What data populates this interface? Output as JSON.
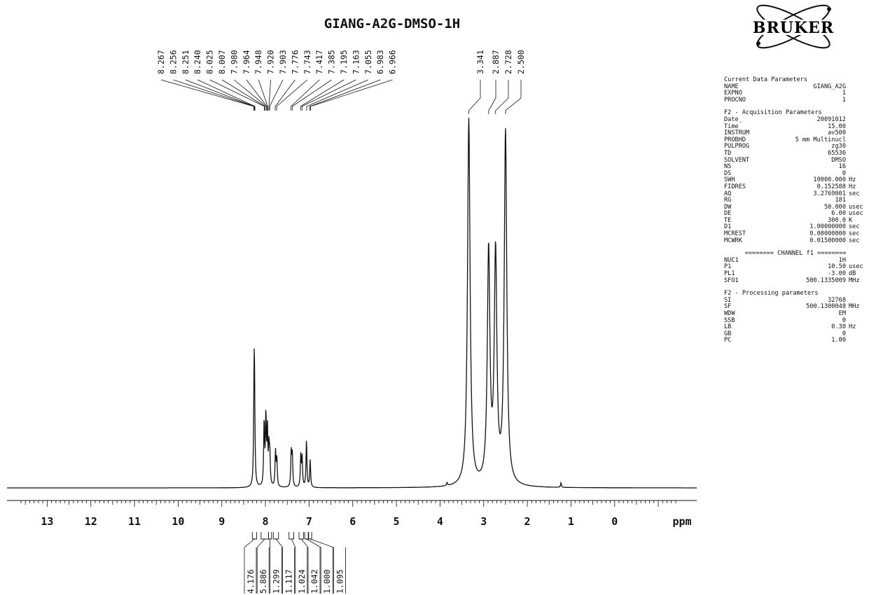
{
  "chart_data": {
    "type": "line",
    "title": "GIANG-A2G-DMSO-1H",
    "xlabel": "ppm",
    "x_axis_reversed": true,
    "xlim": [
      13.6,
      -1.4
    ],
    "x_ticks": [
      13,
      12,
      11,
      10,
      9,
      8,
      7,
      6,
      5,
      4,
      3,
      2,
      1,
      0
    ],
    "ylim": [
      0,
      1.0
    ],
    "series": [
      {
        "peaks": [
          {
            "ppm": 8.26,
            "height": 0.245
          },
          {
            "ppm": 8.25,
            "height": 0.2
          },
          {
            "ppm": 8.03,
            "height": 0.175
          },
          {
            "ppm": 7.99,
            "height": 0.188
          },
          {
            "ppm": 7.955,
            "height": 0.15
          },
          {
            "ppm": 7.92,
            "height": 0.095
          },
          {
            "ppm": 7.9,
            "height": 0.082
          },
          {
            "ppm": 7.77,
            "height": 0.095
          },
          {
            "ppm": 7.74,
            "height": 0.078
          },
          {
            "ppm": 7.41,
            "height": 0.094
          },
          {
            "ppm": 7.385,
            "height": 0.088
          },
          {
            "ppm": 7.19,
            "height": 0.085
          },
          {
            "ppm": 7.16,
            "height": 0.08
          },
          {
            "ppm": 7.06,
            "height": 0.13
          },
          {
            "ppm": 6.975,
            "height": 0.074
          },
          {
            "ppm": 3.341,
            "height": 1.0
          },
          {
            "ppm": 2.887,
            "height": 0.63
          },
          {
            "ppm": 2.728,
            "height": 0.62
          },
          {
            "ppm": 2.5,
            "height": 0.96
          },
          {
            "ppm": 3.84,
            "height": 0.008
          },
          {
            "ppm": 1.23,
            "height": 0.012
          }
        ]
      }
    ],
    "peak_labels": [
      "8.267",
      "8.256",
      "8.251",
      "8.240",
      "8.025",
      "8.007",
      "7.980",
      "7.964",
      "7.948",
      "7.920",
      "7.903",
      "7.776",
      "7.743",
      "7.417",
      "7.385",
      "7.195",
      "7.163",
      "7.055",
      "6.983",
      "6.966"
    ],
    "peak_labels_right": [
      "3.341",
      "2.887",
      "2.728",
      "2.500"
    ],
    "integrals": [
      {
        "from": 8.3,
        "to": 8.2,
        "value": "4.176"
      },
      {
        "from": 8.1,
        "to": 7.93,
        "value": "5.886"
      },
      {
        "from": 7.93,
        "to": 7.86,
        "value": "1.299"
      },
      {
        "from": 7.82,
        "to": 7.7,
        "value": "1.117"
      },
      {
        "from": 7.46,
        "to": 7.35,
        "value": "1.024"
      },
      {
        "from": 7.23,
        "to": 7.13,
        "value": "1.042"
      },
      {
        "from": 7.1,
        "to": 7.02,
        "value": "1.000"
      },
      {
        "from": 7.01,
        "to": 6.94,
        "value": "1.095"
      }
    ]
  },
  "logo": {
    "text": "BRUKER"
  },
  "params": {
    "current": {
      "title": "Current Data Parameters",
      "rows": [
        {
          "k": "NAME",
          "v": "GIANG_A2G",
          "u": ""
        },
        {
          "k": "EXPNO",
          "v": "1",
          "u": ""
        },
        {
          "k": "PROCNO",
          "v": "1",
          "u": ""
        }
      ]
    },
    "acq": {
      "title": "F2 - Acquisition Parameters",
      "rows": [
        {
          "k": "Date_",
          "v": "20091012",
          "u": ""
        },
        {
          "k": "Time",
          "v": "15.00",
          "u": ""
        },
        {
          "k": "INSTRUM",
          "v": "av500",
          "u": ""
        },
        {
          "k": "PROBHD",
          "v": "5 mm Multinucl",
          "u": ""
        },
        {
          "k": "PULPROG",
          "v": "zg30",
          "u": ""
        },
        {
          "k": "TD",
          "v": "65536",
          "u": ""
        },
        {
          "k": "SOLVENT",
          "v": "DMSO",
          "u": ""
        },
        {
          "k": "NS",
          "v": "16",
          "u": ""
        },
        {
          "k": "DS",
          "v": "0",
          "u": ""
        },
        {
          "k": "SWH",
          "v": "10000.000",
          "u": "Hz"
        },
        {
          "k": "FIDRES",
          "v": "0.152588",
          "u": "Hz"
        },
        {
          "k": "AQ",
          "v": "3.2769001",
          "u": "sec"
        },
        {
          "k": "RG",
          "v": "181",
          "u": ""
        },
        {
          "k": "DW",
          "v": "50.000",
          "u": "usec"
        },
        {
          "k": "DE",
          "v": "6.00",
          "u": "usec"
        },
        {
          "k": "TE",
          "v": "300.0",
          "u": "K"
        },
        {
          "k": "D1",
          "v": "1.00000000",
          "u": "sec"
        },
        {
          "k": "MCREST",
          "v": "0.00000000",
          "u": "sec"
        },
        {
          "k": "MCWRK",
          "v": "0.01500000",
          "u": "sec"
        }
      ]
    },
    "channel": {
      "title": "======== CHANNEL f1 ========",
      "rows": [
        {
          "k": "NUC1",
          "v": "1H",
          "u": ""
        },
        {
          "k": "P1",
          "v": "10.50",
          "u": "usec"
        },
        {
          "k": "PL1",
          "v": "-3.00",
          "u": "dB"
        },
        {
          "k": "SFO1",
          "v": "500.1335009",
          "u": "MHz"
        }
      ]
    },
    "proc": {
      "title": "F2 - Processing parameters",
      "rows": [
        {
          "k": "SI",
          "v": "32768",
          "u": ""
        },
        {
          "k": "SF",
          "v": "500.1300048",
          "u": "MHz"
        },
        {
          "k": "WDW",
          "v": "EM",
          "u": ""
        },
        {
          "k": "SSB",
          "v": "0",
          "u": ""
        },
        {
          "k": "LB",
          "v": "0.30",
          "u": "Hz"
        },
        {
          "k": "GB",
          "v": "0",
          "u": ""
        },
        {
          "k": "PC",
          "v": "1.00",
          "u": ""
        }
      ]
    }
  }
}
